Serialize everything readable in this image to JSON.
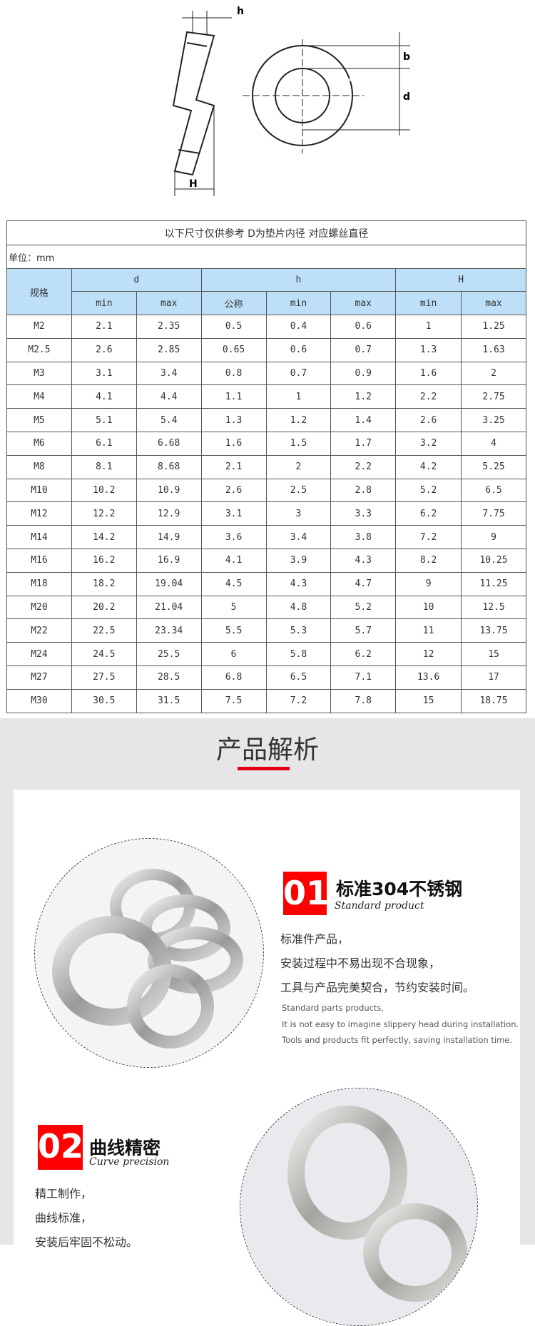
{
  "diagram": {
    "labels": {
      "h": "h",
      "b": "b",
      "d": "d",
      "H": "H"
    }
  },
  "table": {
    "caption": "以下尺寸仅供参考 D为垫片内径 对应螺丝直径",
    "unit": "单位：mm",
    "headers": {
      "spec": "规格",
      "d": "d",
      "h": "h",
      "H": "H",
      "sub": [
        "min",
        "max",
        "公称",
        "min",
        "max",
        "min",
        "max"
      ]
    },
    "rows": [
      [
        "M2",
        "2.1",
        "2.35",
        "0.5",
        "0.4",
        "0.6",
        "1",
        "1.25"
      ],
      [
        "M2.5",
        "2.6",
        "2.85",
        "0.65",
        "0.6",
        "0.7",
        "1.3",
        "1.63"
      ],
      [
        "M3",
        "3.1",
        "3.4",
        "0.8",
        "0.7",
        "0.9",
        "1.6",
        "2"
      ],
      [
        "M4",
        "4.1",
        "4.4",
        "1.1",
        "1",
        "1.2",
        "2.2",
        "2.75"
      ],
      [
        "M5",
        "5.1",
        "5.4",
        "1.3",
        "1.2",
        "1.4",
        "2.6",
        "3.25"
      ],
      [
        "M6",
        "6.1",
        "6.68",
        "1.6",
        "1.5",
        "1.7",
        "3.2",
        "4"
      ],
      [
        "M8",
        "8.1",
        "8.68",
        "2.1",
        "2",
        "2.2",
        "4.2",
        "5.25"
      ],
      [
        "M10",
        "10.2",
        "10.9",
        "2.6",
        "2.5",
        "2.8",
        "5.2",
        "6.5"
      ],
      [
        "M12",
        "12.2",
        "12.9",
        "3.1",
        "3",
        "3.3",
        "6.2",
        "7.75"
      ],
      [
        "M14",
        "14.2",
        "14.9",
        "3.6",
        "3.4",
        "3.8",
        "7.2",
        "9"
      ],
      [
        "M16",
        "16.2",
        "16.9",
        "4.1",
        "3.9",
        "4.3",
        "8.2",
        "10.25"
      ],
      [
        "M18",
        "18.2",
        "19.04",
        "4.5",
        "4.3",
        "4.7",
        "9",
        "11.25"
      ],
      [
        "M20",
        "20.2",
        "21.04",
        "5",
        "4.8",
        "5.2",
        "10",
        "12.5"
      ],
      [
        "M22",
        "22.5",
        "23.34",
        "5.5",
        "5.3",
        "5.7",
        "11",
        "13.75"
      ],
      [
        "M24",
        "24.5",
        "25.5",
        "6",
        "5.8",
        "6.2",
        "12",
        "15"
      ],
      [
        "M27",
        "27.5",
        "28.5",
        "6.8",
        "6.5",
        "7.1",
        "13.6",
        "17"
      ],
      [
        "M30",
        "30.5",
        "31.5",
        "7.5",
        "7.2",
        "7.8",
        "15",
        "18.75"
      ]
    ]
  },
  "analysis": {
    "title": "产品解析",
    "accent": "#e60012",
    "feature1": {
      "num": "01",
      "title": "标准304不锈钢",
      "subtitle": "Standard product",
      "zh": [
        "标准件产品，",
        "安装过程中不易出现不合现象，",
        "工具与产品完美契合，节约安装时间。"
      ],
      "en": [
        "Standard parts products,",
        "It is not easy to imagine slippery head during installation.",
        "Tools and products fit perfectly, saving installation time."
      ]
    },
    "feature2": {
      "num": "02",
      "title": "曲线精密",
      "subtitle": "Curve precision",
      "zh": [
        "精工制作，",
        "曲线标准，",
        "安装后牢固不松动。"
      ]
    }
  }
}
